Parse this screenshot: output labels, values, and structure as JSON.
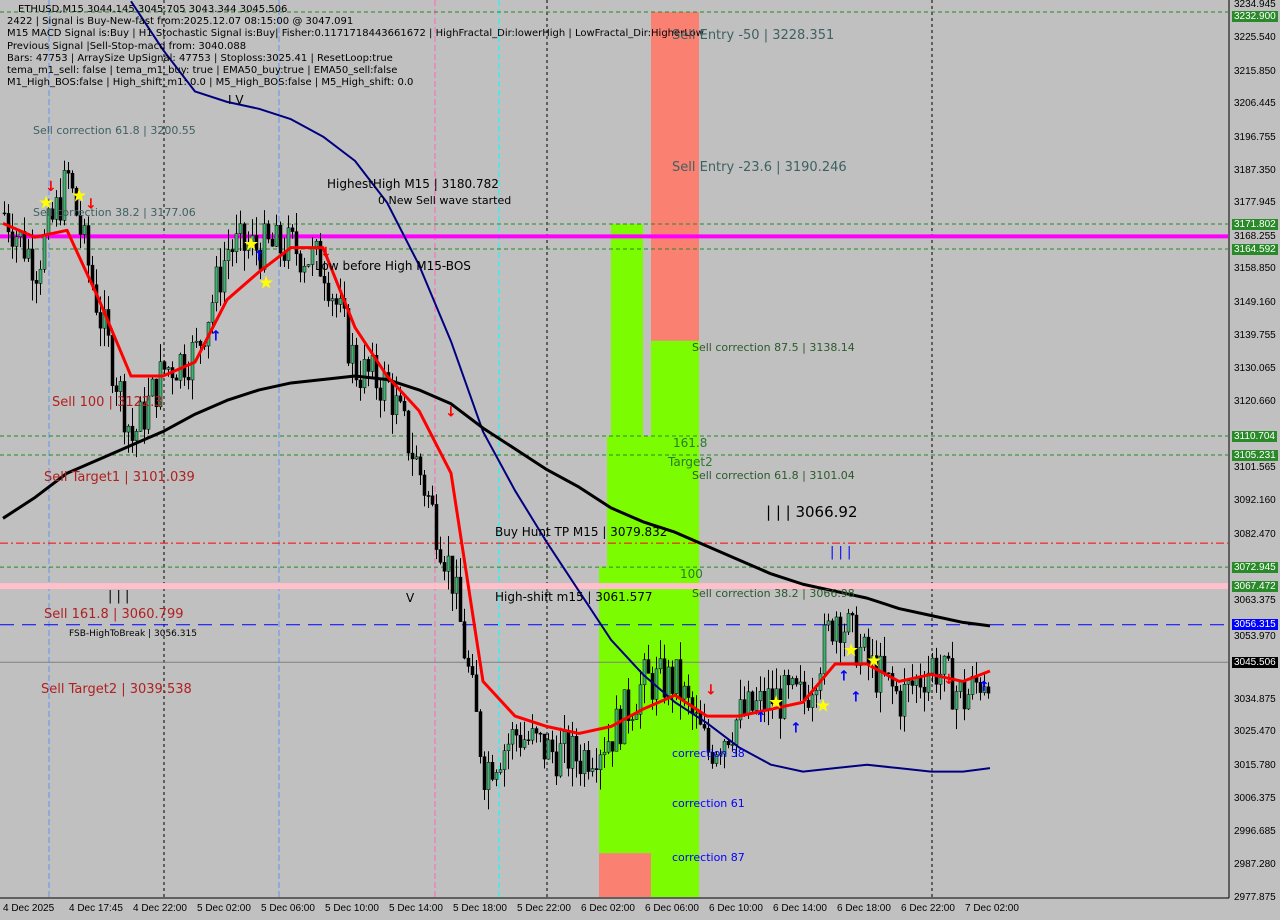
{
  "info_lines": [
    "ETHUSD,M15  3044.145 3045.705 3043.344 3045.506",
    "2422 | Signal is Buy-New-fast from:2025.12.07 08:15:00 @ 3047.091",
    "M15 MACD Signal is:Buy | H1 Stochastic Signal is:Buy| Fisher:0.11717184436616​72 | HighFractal_Dir:lowerHigh | LowFractal_Dir:HigherLow",
    "Previous Signal |Sell-Stop-macd from: 3040.088",
    "Bars: 47753 | ArraySize UpSignal: 47753 | Stoploss:3025.41 | ResetLoop:true",
    "tema_m1_sell: false | tema_m1_buy: true | EMA50_buy:true | EMA50_sell:false",
    "M1_High_BOS:false | High_shift_m1: 0.0 | M5_High_BOS:false | M5_High_shift: 0.0"
  ],
  "labels": [
    {
      "text": "Sell Entry -50 | 3228.351",
      "color": "#3f6060",
      "price": 3228.351,
      "x": "6 Dec 10:00"
    },
    {
      "text": "Sell Entry -23.6 | 3190.246",
      "color": "#3f6060",
      "price": 3190.246
    },
    {
      "text": "Sell correction 61.8 | 3200.55",
      "color": "#3f6060",
      "price": 3200.55
    },
    {
      "text": "Sell correction 38.2 | 3177.06",
      "color": "#3f6060",
      "price": 3177.06
    },
    {
      "text": "HighestHigh   M15 | 3180.782",
      "color": "#000000"
    },
    {
      "text": "0 New Sell wave started",
      "color": "#000000"
    },
    {
      "text": "Low before High   M15-BOS",
      "color": "#000000"
    },
    {
      "text": "Sell correction 87.5 | 3138.14",
      "color": "#2a5a2a"
    },
    {
      "text": "Sell 100 | 3122.3",
      "color": "#b02020"
    },
    {
      "text": "161.8",
      "color": "#2a7a2a"
    },
    {
      "text": "Target2",
      "color": "#2a7a2a"
    },
    {
      "text": "Sell correction 61.8 | 3101.04",
      "color": "#2a5a2a"
    },
    {
      "text": "Sell Target1 | 3101.039",
      "color": "#b02020"
    },
    {
      "text": "| | | 3066.92",
      "color": "#000000"
    },
    {
      "text": "Buy Hunt TP M15 | 3079.832",
      "color": "#000000"
    },
    {
      "text": "100",
      "color": "#2a7a2a"
    },
    {
      "text": "Sell correction 38.2 | 3066.98",
      "color": "#2a5a2a"
    },
    {
      "text": "High-shift m15 | 3061.577",
      "color": "#000000"
    },
    {
      "text": "Sell 161.8 | 3060.799",
      "color": "#b02020"
    },
    {
      "text": "FSB-HighToBreak | 3056.315",
      "color": "#000000"
    },
    {
      "text": "Sell Target2 | 3039.538",
      "color": "#b02020"
    },
    {
      "text": "correction 38",
      "color": "#0000ff"
    },
    {
      "text": "correction 61",
      "color": "#0000ff"
    },
    {
      "text": "correction 87",
      "color": "#0000ff"
    },
    {
      "text": "| | |",
      "color": "#000000"
    },
    {
      "text": "| | |",
      "color": "#0000ff"
    },
    {
      "text": "V",
      "color": "#000000"
    },
    {
      "text": "I V",
      "color": "#000000"
    }
  ],
  "price_axis": [
    {
      "v": "3234.945"
    },
    {
      "v": "3232.900",
      "bg": "#2a8a2a"
    },
    {
      "v": "3225.540"
    },
    {
      "v": "3215.850"
    },
    {
      "v": "3206.445"
    },
    {
      "v": "3196.755"
    },
    {
      "v": "3187.350"
    },
    {
      "v": "3177.945"
    },
    {
      "v": "3171.802",
      "bg": "#2a8a2a"
    },
    {
      "v": "3168.255"
    },
    {
      "v": "3164.592",
      "bg": "#2a8a2a"
    },
    {
      "v": "3158.850"
    },
    {
      "v": "3149.160"
    },
    {
      "v": "3139.755"
    },
    {
      "v": "3130.065"
    },
    {
      "v": "3120.660"
    },
    {
      "v": "3110.704",
      "bg": "#2a8a2a"
    },
    {
      "v": "3105.231",
      "bg": "#2a8a2a"
    },
    {
      "v": "3101.565"
    },
    {
      "v": "3092.160"
    },
    {
      "v": "3082.470"
    },
    {
      "v": "3072.945",
      "bg": "#2a8a2a"
    },
    {
      "v": "3067.472",
      "bg": "#2a8a2a"
    },
    {
      "v": "3063.375"
    },
    {
      "v": "3056.315",
      "bg": "#0000ff"
    },
    {
      "v": "3053.970"
    },
    {
      "v": "3045.506",
      "bg": "#000000"
    },
    {
      "v": "3034.875"
    },
    {
      "v": "3025.470"
    },
    {
      "v": "3015.780"
    },
    {
      "v": "3006.375"
    },
    {
      "v": "2996.685"
    },
    {
      "v": "2987.280"
    },
    {
      "v": "2977.875"
    }
  ],
  "time_axis": [
    "4 Dec 2025",
    "4 Dec 17:45",
    "4 Dec 22:00",
    "5 Dec 02:00",
    "5 Dec 06:00",
    "5 Dec 10:00",
    "5 Dec 14:00",
    "5 Dec 18:00",
    "5 Dec 22:00",
    "6 Dec 02:00",
    "6 Dec 06:00",
    "6 Dec 10:00",
    "6 Dec 14:00",
    "6 Dec 18:00",
    "6 Dec 22:00",
    "7 Dec 02:00"
  ],
  "chart_data": {
    "type": "candlestick",
    "symbol": "ETHUSD",
    "timeframe": "M15",
    "ylim": [
      2977.875,
      3232.9
    ],
    "last_price": 3045.506,
    "times": [
      "4 Dec 14:00",
      "4 Dec 16:00",
      "4 Dec 18:00",
      "4 Dec 20:00",
      "4 Dec 22:00",
      "5 Dec 00:00",
      "5 Dec 02:00",
      "5 Dec 04:00",
      "5 Dec 06:00",
      "5 Dec 08:00",
      "5 Dec 10:00",
      "5 Dec 12:00",
      "5 Dec 14:00",
      "5 Dec 16:00",
      "5 Dec 18:00",
      "5 Dec 20:00",
      "5 Dec 22:00",
      "6 Dec 00:00",
      "6 Dec 02:00",
      "6 Dec 04:00",
      "6 Dec 06:00",
      "6 Dec 08:00",
      "6 Dec 10:00",
      "6 Dec 12:00",
      "6 Dec 14:00",
      "6 Dec 16:00",
      "6 Dec 18:00",
      "6 Dec 20:00",
      "6 Dec 22:00",
      "6 Dec 24:00",
      "7 Dec 02:00",
      "7 Dec 03:45"
    ],
    "close_approx": [
      3175,
      3160,
      3185,
      3145,
      3110,
      3130,
      3135,
      3165,
      3165,
      3165,
      3160,
      3130,
      3125,
      3100,
      3070,
      3015,
      3025,
      3020,
      3018,
      3025,
      3040,
      3040,
      3020,
      3030,
      3035,
      3035,
      3060,
      3045,
      3035,
      3045,
      3035,
      3046
    ],
    "ma_black": [
      3087,
      3093,
      3100,
      3104,
      3108,
      3112,
      3117,
      3121,
      3124,
      3126,
      3127,
      3128,
      3127,
      3124,
      3120,
      3113,
      3107,
      3101,
      3096,
      3090,
      3086,
      3083,
      3079,
      3075,
      3071,
      3068,
      3066,
      3064,
      3061,
      3059,
      3057,
      3056
    ],
    "ma_navy": [
      null,
      null,
      null,
      null,
      3236,
      3222,
      3210,
      3207,
      3205,
      3202,
      3197,
      3190,
      3178,
      3160,
      3138,
      3112,
      3095,
      3080,
      3066,
      3052,
      3042,
      3034,
      3028,
      3021,
      3016,
      3014,
      3015,
      3016,
      3015,
      3014,
      3014,
      3015
    ],
    "ma_red": [
      3172,
      3168,
      3170,
      3150,
      3128,
      3128,
      3132,
      3150,
      3158,
      3165,
      3165,
      3142,
      3128,
      3118,
      3100,
      3040,
      3030,
      3027,
      3025,
      3027,
      3032,
      3036,
      3030,
      3030,
      3032,
      3034,
      3045,
      3045,
      3040,
      3042,
      3040,
      3043
    ],
    "levels": [
      {
        "price": 3232.9,
        "style": "dash",
        "color": "#228b22"
      },
      {
        "price": 3171.802,
        "style": "dash",
        "color": "#228b22"
      },
      {
        "price": 3168.255,
        "style": "solid",
        "color": "#ff00ff"
      },
      {
        "price": 3164.592,
        "style": "dash",
        "color": "#228b22"
      },
      {
        "price": 3110.704,
        "style": "dash",
        "color": "#228b22"
      },
      {
        "price": 3105.231,
        "style": "dash",
        "color": "#228b22"
      },
      {
        "price": 3079.832,
        "style": "dashdot",
        "color": "#ff0000"
      },
      {
        "price": 3072.945,
        "style": "dash",
        "color": "#228b22"
      },
      {
        "price": 3067.472,
        "style": "band",
        "color": "#ffc0cb"
      },
      {
        "price": 3056.315,
        "style": "longdash",
        "color": "#0000ff"
      },
      {
        "price": 3045.506,
        "style": "solid",
        "color": "#808080"
      }
    ],
    "zones": [
      {
        "from": "6 Dec 06:30",
        "to": "6 Dec 09:30",
        "top": 3232.9,
        "bottom": 3138.14,
        "color": "#fa8072"
      },
      {
        "from": "6 Dec 06:30",
        "to": "6 Dec 09:30",
        "top": 3138.14,
        "bottom": 2977.875,
        "color": "#7cfc00"
      },
      {
        "from": "6 Dec 04:00",
        "to": "6 Dec 06:00",
        "top": 3171.802,
        "bottom": 3110.704,
        "color": "#7cfc00"
      },
      {
        "from": "6 Dec 03:45",
        "to": "6 Dec 06:30",
        "top": 3110.704,
        "bottom": 3072.945,
        "color": "#7cfc00"
      },
      {
        "from": "6 Dec 03:15",
        "to": "6 Dec 06:30",
        "top": 3072.945,
        "bottom": 2990.5,
        "color": "#7cfc00"
      },
      {
        "from": "6 Dec 03:15",
        "to": "6 Dec 06:30",
        "top": 2990.5,
        "bottom": 2977.875,
        "color": "#fa8072"
      }
    ],
    "colors": {
      "background": "#c0c0c0",
      "bull": "#3cb371",
      "bear": "#000000",
      "grid": "#000000"
    }
  }
}
